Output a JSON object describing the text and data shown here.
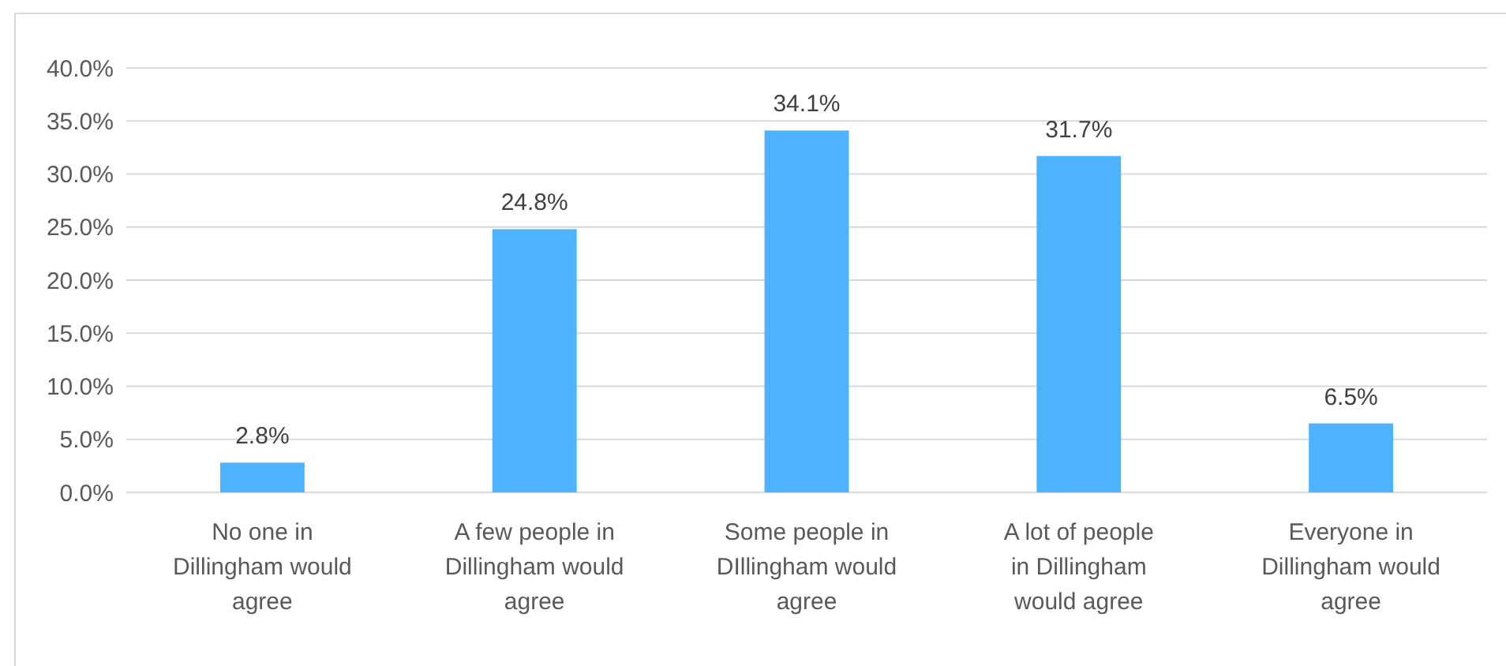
{
  "chart_data": {
    "type": "bar",
    "categories": [
      "No one in Dillingham would agree",
      "A few people in Dillingham would agree",
      "Some people in DIllingham would agree",
      "A lot of people in Dillingham would agree",
      "Everyone in Dillingham would agree"
    ],
    "values": [
      2.8,
      24.8,
      34.1,
      31.7,
      6.5
    ],
    "value_labels": [
      "2.8%",
      "24.8%",
      "34.1%",
      "31.7%",
      "6.5%"
    ],
    "color": "#4db2ff",
    "ylim": [
      0,
      40
    ],
    "yticks": [
      {
        "value": 0,
        "label": "0.0%"
      },
      {
        "value": 5,
        "label": "5.0%"
      },
      {
        "value": 10,
        "label": "10.0%"
      },
      {
        "value": 15,
        "label": "15.0%"
      },
      {
        "value": 20,
        "label": "20.0%"
      },
      {
        "value": 25,
        "label": "25.0%"
      },
      {
        "value": 30,
        "label": "30.0%"
      },
      {
        "value": 35,
        "label": "35.0%"
      },
      {
        "value": 40,
        "label": "40.0%"
      }
    ],
    "grid": "y"
  }
}
